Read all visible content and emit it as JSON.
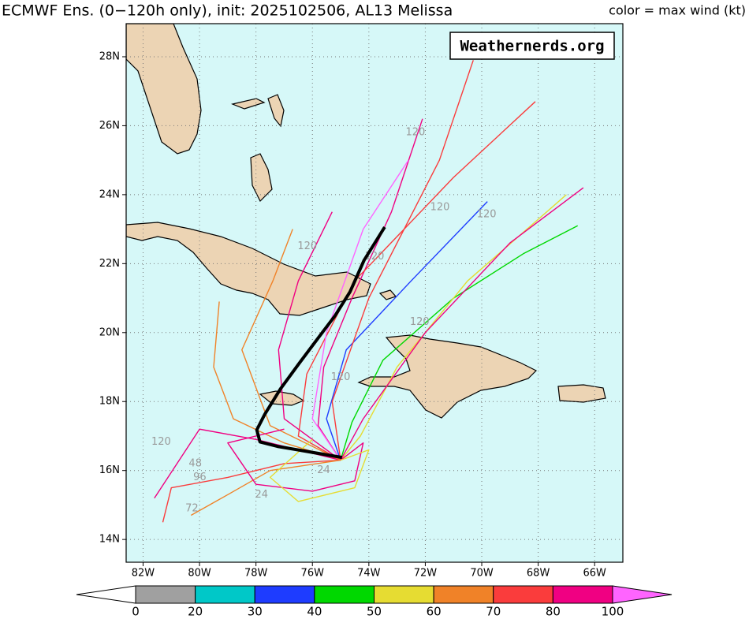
{
  "chart_data": {
    "type": "track-map",
    "title": "ECMWF Ens. (0−120h only), init: 2025102506, AL13 Melissa",
    "subtitle": "color = max wind (kt)",
    "watermark": "Weathernerds.org",
    "background": "#d6f8f8",
    "land_color": "#ecd4b4",
    "grid": true,
    "xlim": [
      -82.6,
      -65.0
    ],
    "ylim": [
      13.34,
      28.96
    ],
    "xticks": [
      {
        "value": -82,
        "label": "82W"
      },
      {
        "value": -80,
        "label": "80W"
      },
      {
        "value": -78,
        "label": "78W"
      },
      {
        "value": -76,
        "label": "76W"
      },
      {
        "value": -74,
        "label": "74W"
      },
      {
        "value": -72,
        "label": "72W"
      },
      {
        "value": -70,
        "label": "70W"
      },
      {
        "value": -68,
        "label": "68W"
      },
      {
        "value": -66,
        "label": "66W"
      }
    ],
    "yticks": [
      {
        "value": 14,
        "label": "14N"
      },
      {
        "value": 16,
        "label": "16N"
      },
      {
        "value": 18,
        "label": "18N"
      },
      {
        "value": 20,
        "label": "20N"
      },
      {
        "value": 22,
        "label": "22N"
      },
      {
        "value": 24,
        "label": "24N"
      },
      {
        "value": 26,
        "label": "26N"
      },
      {
        "value": 28,
        "label": "28N"
      }
    ],
    "colorbar": {
      "ticks": [
        0,
        20,
        30,
        40,
        50,
        60,
        70,
        80,
        100
      ],
      "colors": [
        "#a0a0a0",
        "#00c8c8",
        "#1e3cff",
        "#00d800",
        "#e6dc32",
        "#f08228",
        "#fa3c3c",
        "#f00082"
      ],
      "under_color": "#ffffff",
      "over_color": "#ff64ff"
    },
    "tracks": [
      {
        "color": "#f00082",
        "lon": [
          -75.0,
          -75.8,
          -75.6,
          -74.6,
          -73.2,
          -72.1
        ],
        "lat": [
          16.3,
          17.3,
          19.0,
          21.0,
          23.5,
          26.2
        ]
      },
      {
        "color": "#fa3c3c",
        "lon": [
          -75.0,
          -76.5,
          -76.2,
          -74.5,
          -71.0,
          -68.1
        ],
        "lat": [
          16.3,
          17.0,
          18.8,
          21.5,
          24.5,
          26.7
        ]
      },
      {
        "color": "#1e3cff",
        "lon": [
          -75.0,
          -75.5,
          -74.8,
          -72.5,
          -69.8
        ],
        "lat": [
          16.3,
          17.5,
          19.5,
          21.5,
          23.8
        ]
      },
      {
        "color": "#00d800",
        "lon": [
          -75.0,
          -74.6,
          -73.5,
          -71.0,
          -68.5,
          -66.6
        ],
        "lat": [
          16.3,
          17.4,
          19.2,
          21.0,
          22.3,
          23.1
        ]
      },
      {
        "color": "#f08228",
        "lon": [
          -75.0,
          -77.0,
          -78.8,
          -79.5,
          -79.3
        ],
        "lat": [
          16.3,
          16.8,
          17.5,
          19.0,
          20.9
        ]
      },
      {
        "color": "#fa3c3c",
        "lon": [
          -75.0,
          -77.0,
          -79.0,
          -81.0,
          -81.3
        ],
        "lat": [
          16.3,
          16.2,
          15.8,
          15.5,
          14.5
        ]
      },
      {
        "color": "#f00082",
        "lon": [
          -75.0,
          -78.0,
          -80.0,
          -81.6
        ],
        "lat": [
          16.3,
          16.9,
          17.2,
          15.2
        ]
      },
      {
        "color": "#f08228",
        "lon": [
          -75.0,
          -77.5,
          -79.0,
          -80.3
        ],
        "lat": [
          16.3,
          16.0,
          15.3,
          14.7
        ]
      },
      {
        "color": "#e6dc32",
        "lon": [
          -75.0,
          -74.3,
          -73.0,
          -70.5,
          -67.0
        ],
        "lat": [
          16.3,
          17.0,
          19.0,
          21.5,
          24.0
        ]
      },
      {
        "color": "#ff64ff",
        "lon": [
          -75.0,
          -76.0,
          -75.5,
          -74.2,
          -72.6
        ],
        "lat": [
          16.3,
          17.5,
          20.0,
          23.0,
          25.0
        ]
      },
      {
        "color": "#f00082",
        "lon": [
          -75.0,
          -77.0,
          -77.2,
          -76.5,
          -75.3
        ],
        "lat": [
          16.3,
          17.5,
          19.5,
          21.5,
          23.5
        ]
      },
      {
        "color": "#f08228",
        "lon": [
          -75.0,
          -77.5,
          -78.5,
          -77.4,
          -76.7
        ],
        "lat": [
          16.3,
          17.3,
          19.5,
          21.5,
          23.0
        ]
      },
      {
        "color": "#fa3c3c",
        "lon": [
          -75.0,
          -75.3,
          -74.0,
          -71.5,
          -70.3
        ],
        "lat": [
          16.3,
          18.0,
          21.0,
          25.0,
          27.9
        ]
      },
      {
        "color": "#f00082",
        "lon": [
          -75.0,
          -74.2,
          -72.0,
          -69.0,
          -66.4
        ],
        "lat": [
          16.3,
          17.5,
          20.0,
          22.6,
          24.2
        ]
      },
      {
        "color": "#f00082",
        "lon": [
          -75.0,
          -74.2,
          -74.5,
          -76.0,
          -78.0,
          -79.0,
          -77.0
        ],
        "lat": [
          16.3,
          16.8,
          15.7,
          15.4,
          15.6,
          16.8,
          17.2
        ]
      },
      {
        "color": "#e6dc32",
        "lon": [
          -75.0,
          -74.0,
          -74.5,
          -76.5,
          -77.5,
          -76.0
        ],
        "lat": [
          16.3,
          16.6,
          15.5,
          15.1,
          15.8,
          16.9
        ]
      }
    ],
    "mean_track": {
      "color": "#000000",
      "lon": [
        -74.95,
        -77.24,
        -77.86,
        -77.97,
        -77.69,
        -77.13,
        -76.46,
        -75.79,
        -75.2,
        -74.67,
        -74.17,
        -73.44
      ],
      "lat": [
        16.38,
        16.7,
        16.83,
        17.18,
        17.63,
        18.37,
        19.12,
        19.85,
        20.49,
        21.18,
        22.1,
        23.06
      ]
    },
    "hour_labels": [
      {
        "text": "120",
        "lon": -81.36,
        "lat": 16.83
      },
      {
        "text": "120",
        "lon": -72.35,
        "lat": 25.8
      },
      {
        "text": "120",
        "lon": -71.48,
        "lat": 23.63
      },
      {
        "text": "120",
        "lon": -69.83,
        "lat": 23.42
      },
      {
        "text": "120",
        "lon": -76.18,
        "lat": 22.5
      },
      {
        "text": "120",
        "lon": -73.8,
        "lat": 22.2
      },
      {
        "text": "120",
        "lon": -72.2,
        "lat": 20.3
      },
      {
        "text": "120",
        "lon": -75.0,
        "lat": 18.7
      },
      {
        "text": "72",
        "lon": -80.27,
        "lat": 14.9
      },
      {
        "text": "96",
        "lon": -79.99,
        "lat": 15.8
      },
      {
        "text": "48",
        "lon": -80.15,
        "lat": 16.2
      },
      {
        "text": "24",
        "lon": -77.8,
        "lat": 15.3
      },
      {
        "text": "24",
        "lon": -75.6,
        "lat": 16.0
      }
    ]
  }
}
